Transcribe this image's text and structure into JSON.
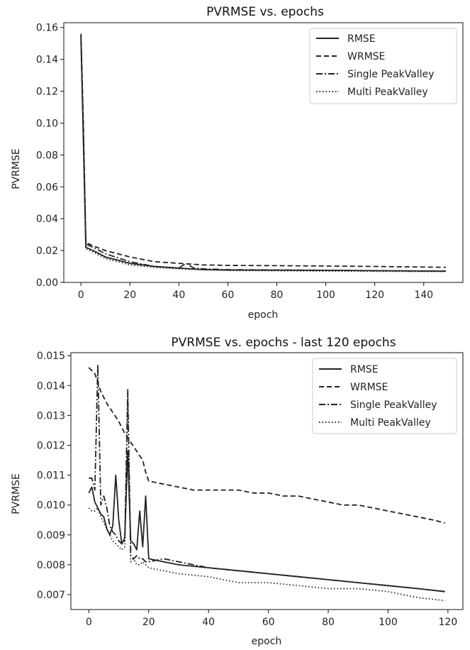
{
  "chart_data": [
    {
      "type": "line",
      "title": "PVRMSE  vs. epochs",
      "xlabel": "epoch",
      "ylabel": "PVRMSE",
      "xlim": [
        -7,
        156
      ],
      "ylim": [
        0,
        0.163
      ],
      "xticks": [
        0,
        20,
        40,
        60,
        80,
        100,
        120,
        140
      ],
      "xtick_labels": [
        "0",
        "20",
        "40",
        "60",
        "80",
        "100",
        "120",
        "140"
      ],
      "yticks": [
        0,
        0.02,
        0.04,
        0.06,
        0.08,
        0.1,
        0.12,
        0.14,
        0.16
      ],
      "ytick_labels": [
        "0.00",
        "0.02",
        "0.04",
        "0.06",
        "0.08",
        "0.10",
        "0.12",
        "0.14",
        "0.16"
      ],
      "legend_position": "top-right",
      "series": [
        {
          "name": "RMSE",
          "style": "solid",
          "x": [
            0,
            1,
            2,
            5,
            10,
            20,
            30,
            40,
            50,
            60,
            80,
            100,
            120,
            149
          ],
          "y": [
            0.155,
            0.09,
            0.022,
            0.02,
            0.016,
            0.012,
            0.01,
            0.009,
            0.008,
            0.0078,
            0.0077,
            0.0076,
            0.0074,
            0.0071
          ]
        },
        {
          "name": "WRMSE",
          "style": "dashed",
          "x": [
            0,
            1,
            2,
            5,
            10,
            20,
            30,
            40,
            50,
            60,
            80,
            100,
            120,
            149
          ],
          "y": [
            0.156,
            0.1,
            0.025,
            0.023,
            0.02,
            0.016,
            0.013,
            0.012,
            0.011,
            0.0107,
            0.0105,
            0.0103,
            0.01,
            0.0095
          ]
        },
        {
          "name": "Single PeakValley",
          "style": "dashdot",
          "x": [
            0,
            1,
            2,
            5,
            10,
            20,
            30,
            40,
            43,
            46,
            50,
            60,
            80,
            100,
            120,
            149
          ],
          "y": [
            0.152,
            0.095,
            0.024,
            0.022,
            0.018,
            0.013,
            0.01,
            0.009,
            0.012,
            0.009,
            0.0085,
            0.008,
            0.0078,
            0.0076,
            0.0073,
            0.0071
          ]
        },
        {
          "name": "Multi PeakValley",
          "style": "dotted",
          "x": [
            0,
            1,
            2,
            5,
            10,
            20,
            30,
            40,
            50,
            60,
            80,
            100,
            120,
            149
          ],
          "y": [
            0.153,
            0.09,
            0.021,
            0.019,
            0.015,
            0.011,
            0.0095,
            0.0085,
            0.008,
            0.0075,
            0.0073,
            0.0071,
            0.007,
            0.0068
          ]
        }
      ]
    },
    {
      "type": "line",
      "title": "PVRMSE vs. epochs - last 120 epochs",
      "xlabel": "epoch",
      "ylabel": "PVRMSE",
      "xlim": [
        -6,
        125
      ],
      "ylim": [
        0.0065,
        0.0151
      ],
      "xticks": [
        0,
        20,
        40,
        60,
        80,
        100,
        120
      ],
      "xtick_labels": [
        "0",
        "20",
        "40",
        "60",
        "80",
        "100",
        "120"
      ],
      "yticks": [
        0.007,
        0.008,
        0.009,
        0.01,
        0.011,
        0.012,
        0.013,
        0.014,
        0.015
      ],
      "ytick_labels": [
        "0.007",
        "0.008",
        "0.009",
        "0.010",
        "0.011",
        "0.012",
        "0.013",
        "0.014",
        "0.015"
      ],
      "legend_position": "top-right",
      "series": [
        {
          "name": "RMSE",
          "style": "solid",
          "x": [
            0,
            1,
            2,
            3,
            4,
            5,
            6,
            7,
            8,
            9,
            10,
            11,
            12,
            13,
            14,
            15,
            16,
            17,
            18,
            19,
            20,
            25,
            30,
            40,
            50,
            60,
            70,
            80,
            90,
            100,
            110,
            119
          ],
          "y": [
            0.0104,
            0.0106,
            0.0101,
            0.0099,
            0.0097,
            0.0096,
            0.0092,
            0.009,
            0.0093,
            0.011,
            0.0095,
            0.0087,
            0.0089,
            0.0118,
            0.0088,
            0.0087,
            0.0085,
            0.0098,
            0.0086,
            0.0103,
            0.0082,
            0.0081,
            0.008,
            0.0079,
            0.0078,
            0.0077,
            0.0076,
            0.0075,
            0.0074,
            0.0073,
            0.0072,
            0.0071
          ]
        },
        {
          "name": "WRMSE",
          "style": "dashed",
          "x": [
            0,
            2,
            4,
            6,
            8,
            10,
            12,
            14,
            16,
            18,
            19,
            20,
            25,
            30,
            35,
            40,
            45,
            50,
            55,
            60,
            65,
            70,
            75,
            80,
            85,
            90,
            95,
            100,
            105,
            110,
            115,
            119
          ],
          "y": [
            0.0146,
            0.0144,
            0.0138,
            0.0134,
            0.0131,
            0.0128,
            0.0124,
            0.0121,
            0.0118,
            0.0115,
            0.0111,
            0.0108,
            0.0107,
            0.0106,
            0.0105,
            0.0105,
            0.0105,
            0.0105,
            0.0104,
            0.0104,
            0.0103,
            0.0103,
            0.0102,
            0.0101,
            0.01,
            0.01,
            0.0099,
            0.0098,
            0.0097,
            0.0096,
            0.0095,
            0.0094
          ]
        },
        {
          "name": "Single PeakValley",
          "style": "dashdot",
          "x": [
            0,
            1,
            2,
            3,
            4,
            5,
            6,
            7,
            8,
            9,
            10,
            11,
            12,
            13,
            14,
            15,
            16,
            17,
            18,
            19,
            20,
            25,
            30,
            40,
            50,
            60,
            70,
            80,
            90,
            100,
            110,
            119
          ],
          "y": [
            0.0109,
            0.0109,
            0.0105,
            0.0147,
            0.01,
            0.0103,
            0.0099,
            0.0093,
            0.0091,
            0.009,
            0.0088,
            0.0087,
            0.0088,
            0.0138,
            0.0083,
            0.0082,
            0.0083,
            0.0082,
            0.0082,
            0.0081,
            0.0081,
            0.0082,
            0.0081,
            0.0079,
            0.0078,
            0.0077,
            0.0076,
            0.0075,
            0.0074,
            0.0073,
            0.0072,
            0.0071
          ]
        },
        {
          "name": "Multi PeakValley",
          "style": "dotted",
          "x": [
            0,
            1,
            2,
            3,
            4,
            5,
            6,
            7,
            8,
            9,
            10,
            11,
            12,
            13,
            14,
            15,
            16,
            17,
            18,
            19,
            20,
            25,
            30,
            40,
            50,
            60,
            70,
            80,
            90,
            100,
            110,
            119
          ],
          "y": [
            0.0099,
            0.0098,
            0.0098,
            0.0099,
            0.0096,
            0.0094,
            0.0092,
            0.009,
            0.0088,
            0.0087,
            0.0086,
            0.0085,
            0.0086,
            0.0139,
            0.0081,
            0.0082,
            0.008,
            0.008,
            0.0081,
            0.008,
            0.0079,
            0.0078,
            0.0077,
            0.0076,
            0.0074,
            0.0074,
            0.0073,
            0.0072,
            0.0072,
            0.0071,
            0.0069,
            0.0068
          ]
        }
      ]
    }
  ]
}
